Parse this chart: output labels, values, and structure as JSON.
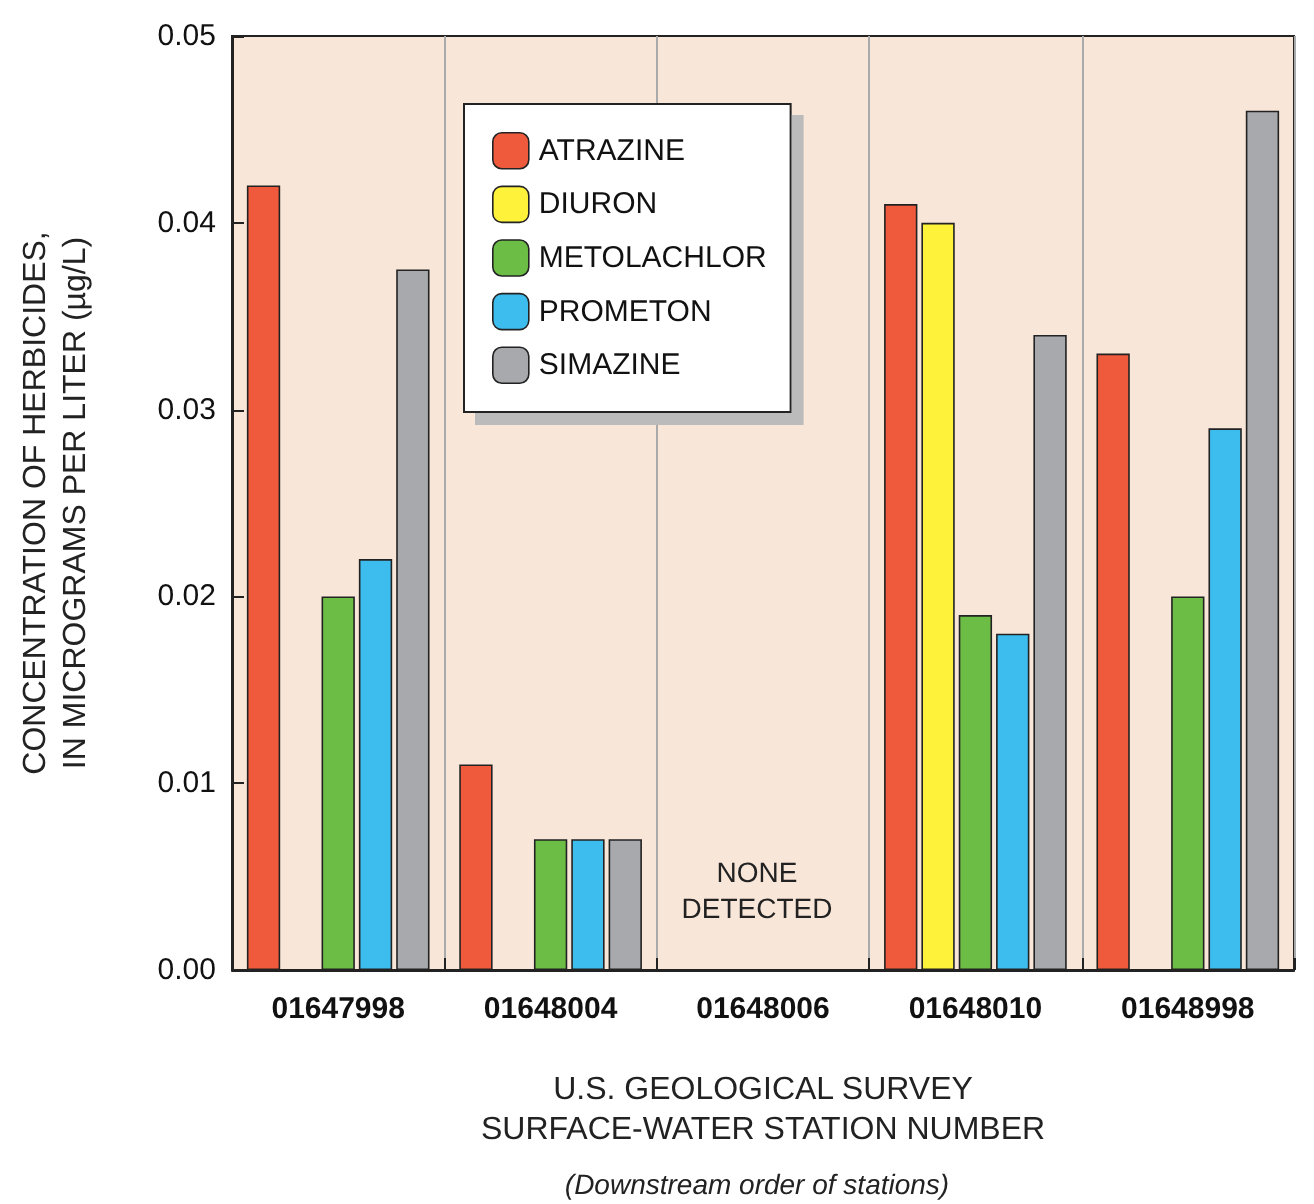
{
  "chart_data": {
    "type": "bar",
    "xlabel": "U.S. GEOLOGICAL SURVEY\nSURFACE-WATER STATION NUMBER",
    "ylabel": "CONCENTRATION OF HERBICIDES,\nIN MICROGRAMS PER LITER (µg/L)",
    "categories": [
      "01647998",
      "01648004",
      "01648006",
      "01648010",
      "01648998"
    ],
    "series": [
      {
        "name": "ATRAZINE",
        "color": "#f05a3c",
        "values": [
          0.042,
          0.011,
          null,
          0.041,
          0.033
        ]
      },
      {
        "name": "DIURON",
        "color": "#fff23a",
        "values": [
          null,
          null,
          null,
          0.04,
          null
        ]
      },
      {
        "name": "METOLACHLOR",
        "color": "#6cbd45",
        "values": [
          0.02,
          0.007,
          null,
          0.019,
          0.02
        ]
      },
      {
        "name": "PROMETON",
        "color": "#3dbdee",
        "values": [
          0.022,
          0.007,
          null,
          0.018,
          0.029
        ]
      },
      {
        "name": "SIMAZINE",
        "color": "#a7a9ac",
        "values": [
          0.0375,
          0.007,
          null,
          0.034,
          0.046
        ]
      }
    ],
    "ylim": [
      0,
      0.05
    ],
    "yticks": [
      {
        "value": 0,
        "label": "0.00"
      },
      0.01,
      0.02,
      0.03,
      0.04,
      0.05
    ],
    "annotations": [
      "NONE\nDETECTED",
      "(Downstream order of stations)"
    ],
    "grid": "x",
    "legend": "top"
  }
}
